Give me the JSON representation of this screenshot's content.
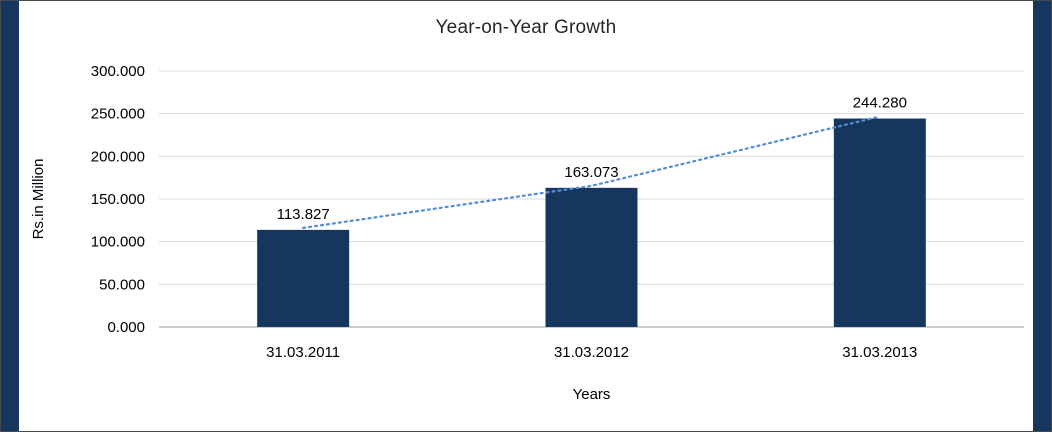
{
  "frame": {
    "accent_color": "#17365d",
    "border_color": "#4a4a4a"
  },
  "chart_data": {
    "type": "bar",
    "title": "Year-on-Year Growth",
    "categories": [
      "31.03.2011",
      "31.03.2012",
      "31.03.2013"
    ],
    "values": [
      113.827,
      163.073,
      244.28
    ],
    "data_labels": [
      "113.827",
      "163.073",
      "244.280"
    ],
    "xlabel": "Years",
    "ylabel": "Rs.in Million",
    "ylim": [
      0,
      300
    ],
    "ytick_step": 50,
    "ytick_labels": [
      "0.000",
      "50.000",
      "100.000",
      "150.000",
      "200.000",
      "250.000",
      "300.000"
    ],
    "bar_color": "#17365d",
    "trendline": {
      "color": "#538dd5",
      "style": "dotted"
    },
    "gridline_color": "#d9d9d9",
    "axis_color": "#9a9a9a",
    "text_color": "#000000",
    "grid": "horizontal",
    "legend_position": "none"
  }
}
